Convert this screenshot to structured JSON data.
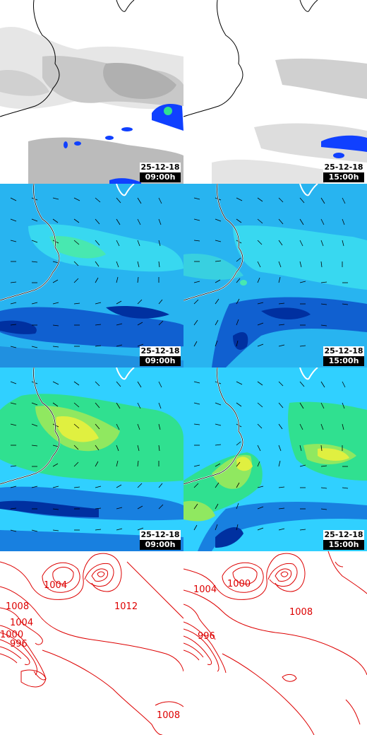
{
  "panels": [
    {
      "id": "p1",
      "kind": "cloud",
      "date": "25-12-18",
      "time": "09:00h"
    },
    {
      "id": "p2",
      "kind": "cloud",
      "date": "25-12-18",
      "time": "15:00h"
    },
    {
      "id": "p3",
      "kind": "wind",
      "date": "25-12-18",
      "time": "09:00h"
    },
    {
      "id": "p4",
      "kind": "wind",
      "date": "25-12-18",
      "time": "15:00h"
    },
    {
      "id": "p5",
      "kind": "gust",
      "date": "25-12-18",
      "time": "09:00h"
    },
    {
      "id": "p6",
      "kind": "gust",
      "date": "25-12-18",
      "time": "15:00h"
    },
    {
      "id": "p7",
      "kind": "pressure",
      "labels": [
        "1004",
        "1008",
        "1012",
        "1004",
        "1000",
        "996",
        "1008"
      ]
    },
    {
      "id": "p8",
      "kind": "pressure",
      "labels": [
        "1004",
        "1000",
        "1008",
        "996"
      ]
    }
  ],
  "colors": {
    "coast": "#000000",
    "wind_low": "#00a0ff",
    "wind_mid": "#30d0ff",
    "wind_strong": "#30e090",
    "wind_peak": "#e0f040",
    "calm": "#0040d0",
    "isobar": "#dd0000",
    "cloud_light": "#e8e8e8",
    "cloud_dark": "#b8b8b8",
    "precip": "#1040ff"
  }
}
